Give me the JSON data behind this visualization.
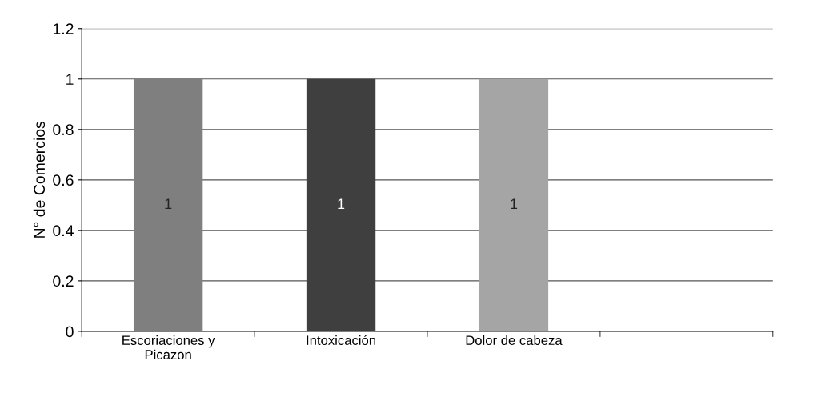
{
  "chart_data": {
    "type": "bar",
    "ylabel": "N° de Comercios",
    "categories": [
      "Escoriaciones y\nPicazon",
      "Intoxicación",
      "Dolor de cabeza",
      null
    ],
    "values": [
      1,
      1,
      1,
      null
    ],
    "colors": [
      "#7f7f7f",
      "#3f3f3f",
      "#a5a5a5",
      "#a5a5a5"
    ],
    "ylim": [
      0,
      1.2
    ],
    "yticks": [
      0,
      0.2,
      0.4,
      0.6,
      0.8,
      1,
      1.2
    ],
    "grid": "y",
    "data_labels": true
  }
}
